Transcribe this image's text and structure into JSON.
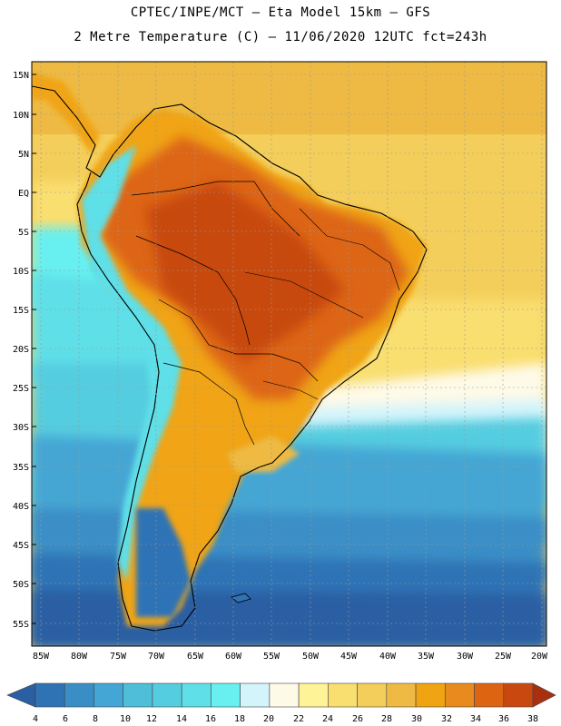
{
  "header": {
    "line1": "CPTEC/INPE/MCT –  Eta Model 15km – GFS",
    "line2": "2 Metre Temperature (C) – 11/06/2020 12UTC fct=243h"
  },
  "axes": {
    "lat_labels": [
      "15N",
      "10N",
      "5N",
      "EQ",
      "5S",
      "10S",
      "15S",
      "20S",
      "25S",
      "30S",
      "35S",
      "40S",
      "45S",
      "50S",
      "55S"
    ],
    "lon_labels": [
      "85W",
      "80W",
      "75W",
      "70W",
      "65W",
      "60W",
      "55W",
      "50W",
      "45W",
      "40W",
      "35W",
      "30W",
      "25W",
      "20W"
    ]
  },
  "colorbar": {
    "labels": [
      "4",
      "6",
      "8",
      "10",
      "12",
      "14",
      "16",
      "18",
      "20",
      "22",
      "24",
      "26",
      "28",
      "30",
      "32",
      "34",
      "36",
      "38"
    ],
    "colors": [
      "#2a5fa3",
      "#2f73b5",
      "#3a8ec6",
      "#44a6d4",
      "#4ebed9",
      "#55cde0",
      "#5fdfe8",
      "#68f0f0",
      "#d4f4fb",
      "#fefae8",
      "#fef397",
      "#f9de70",
      "#f4ce5a",
      "#eeba43",
      "#f0a412",
      "#e88a1e",
      "#dd6512",
      "#c84810",
      "#a8300e"
    ]
  }
}
